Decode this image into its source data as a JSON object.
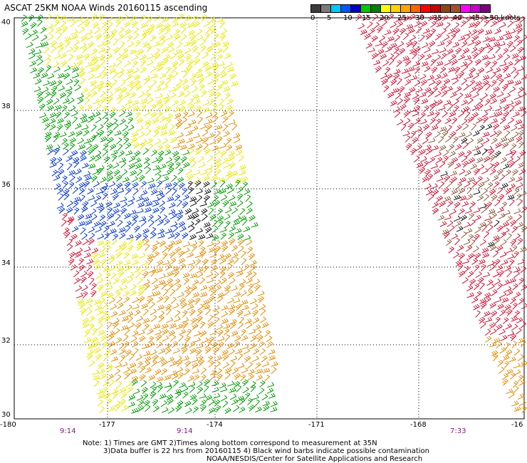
{
  "title": "ASCAT 25KM NOAA Winds 20160115 ascending",
  "legend": {
    "colors": [
      "#3c3c3c",
      "#7a7a7a",
      "#00c8ff",
      "#0055ff",
      "#0000c8",
      "#00c800",
      "#008000",
      "#ffff00",
      "#ffd200",
      "#ffa500",
      "#ff6400",
      "#ff0000",
      "#c80000",
      "#8b4513",
      "#a0522d",
      "#ff00ff",
      "#c800c8",
      "#800080"
    ],
    "labels": [
      "0",
      "5",
      "10",
      "15",
      "20",
      "25",
      "30",
      "35",
      "40",
      "45",
      ">50 knots"
    ]
  },
  "axes": {
    "lat_labels": [
      "40",
      "38",
      "36",
      "34",
      "32",
      "30"
    ],
    "lon_labels": [
      "-180",
      "-177",
      "-174",
      "-171",
      "-168",
      "-16"
    ]
  },
  "times": [
    "9:14",
    "9:14",
    "7:33"
  ],
  "notes": {
    "line1": "Note: 1) Times are GMT 2)Times along bottom correspond to measurement at 35N",
    "line2": "3)Data buffer is 22 hrs from 20160115 4) Black wind barbs indicate possible contamination",
    "line3": "NOAA/NESDIS/Center for Satellite Applications and Research"
  }
}
